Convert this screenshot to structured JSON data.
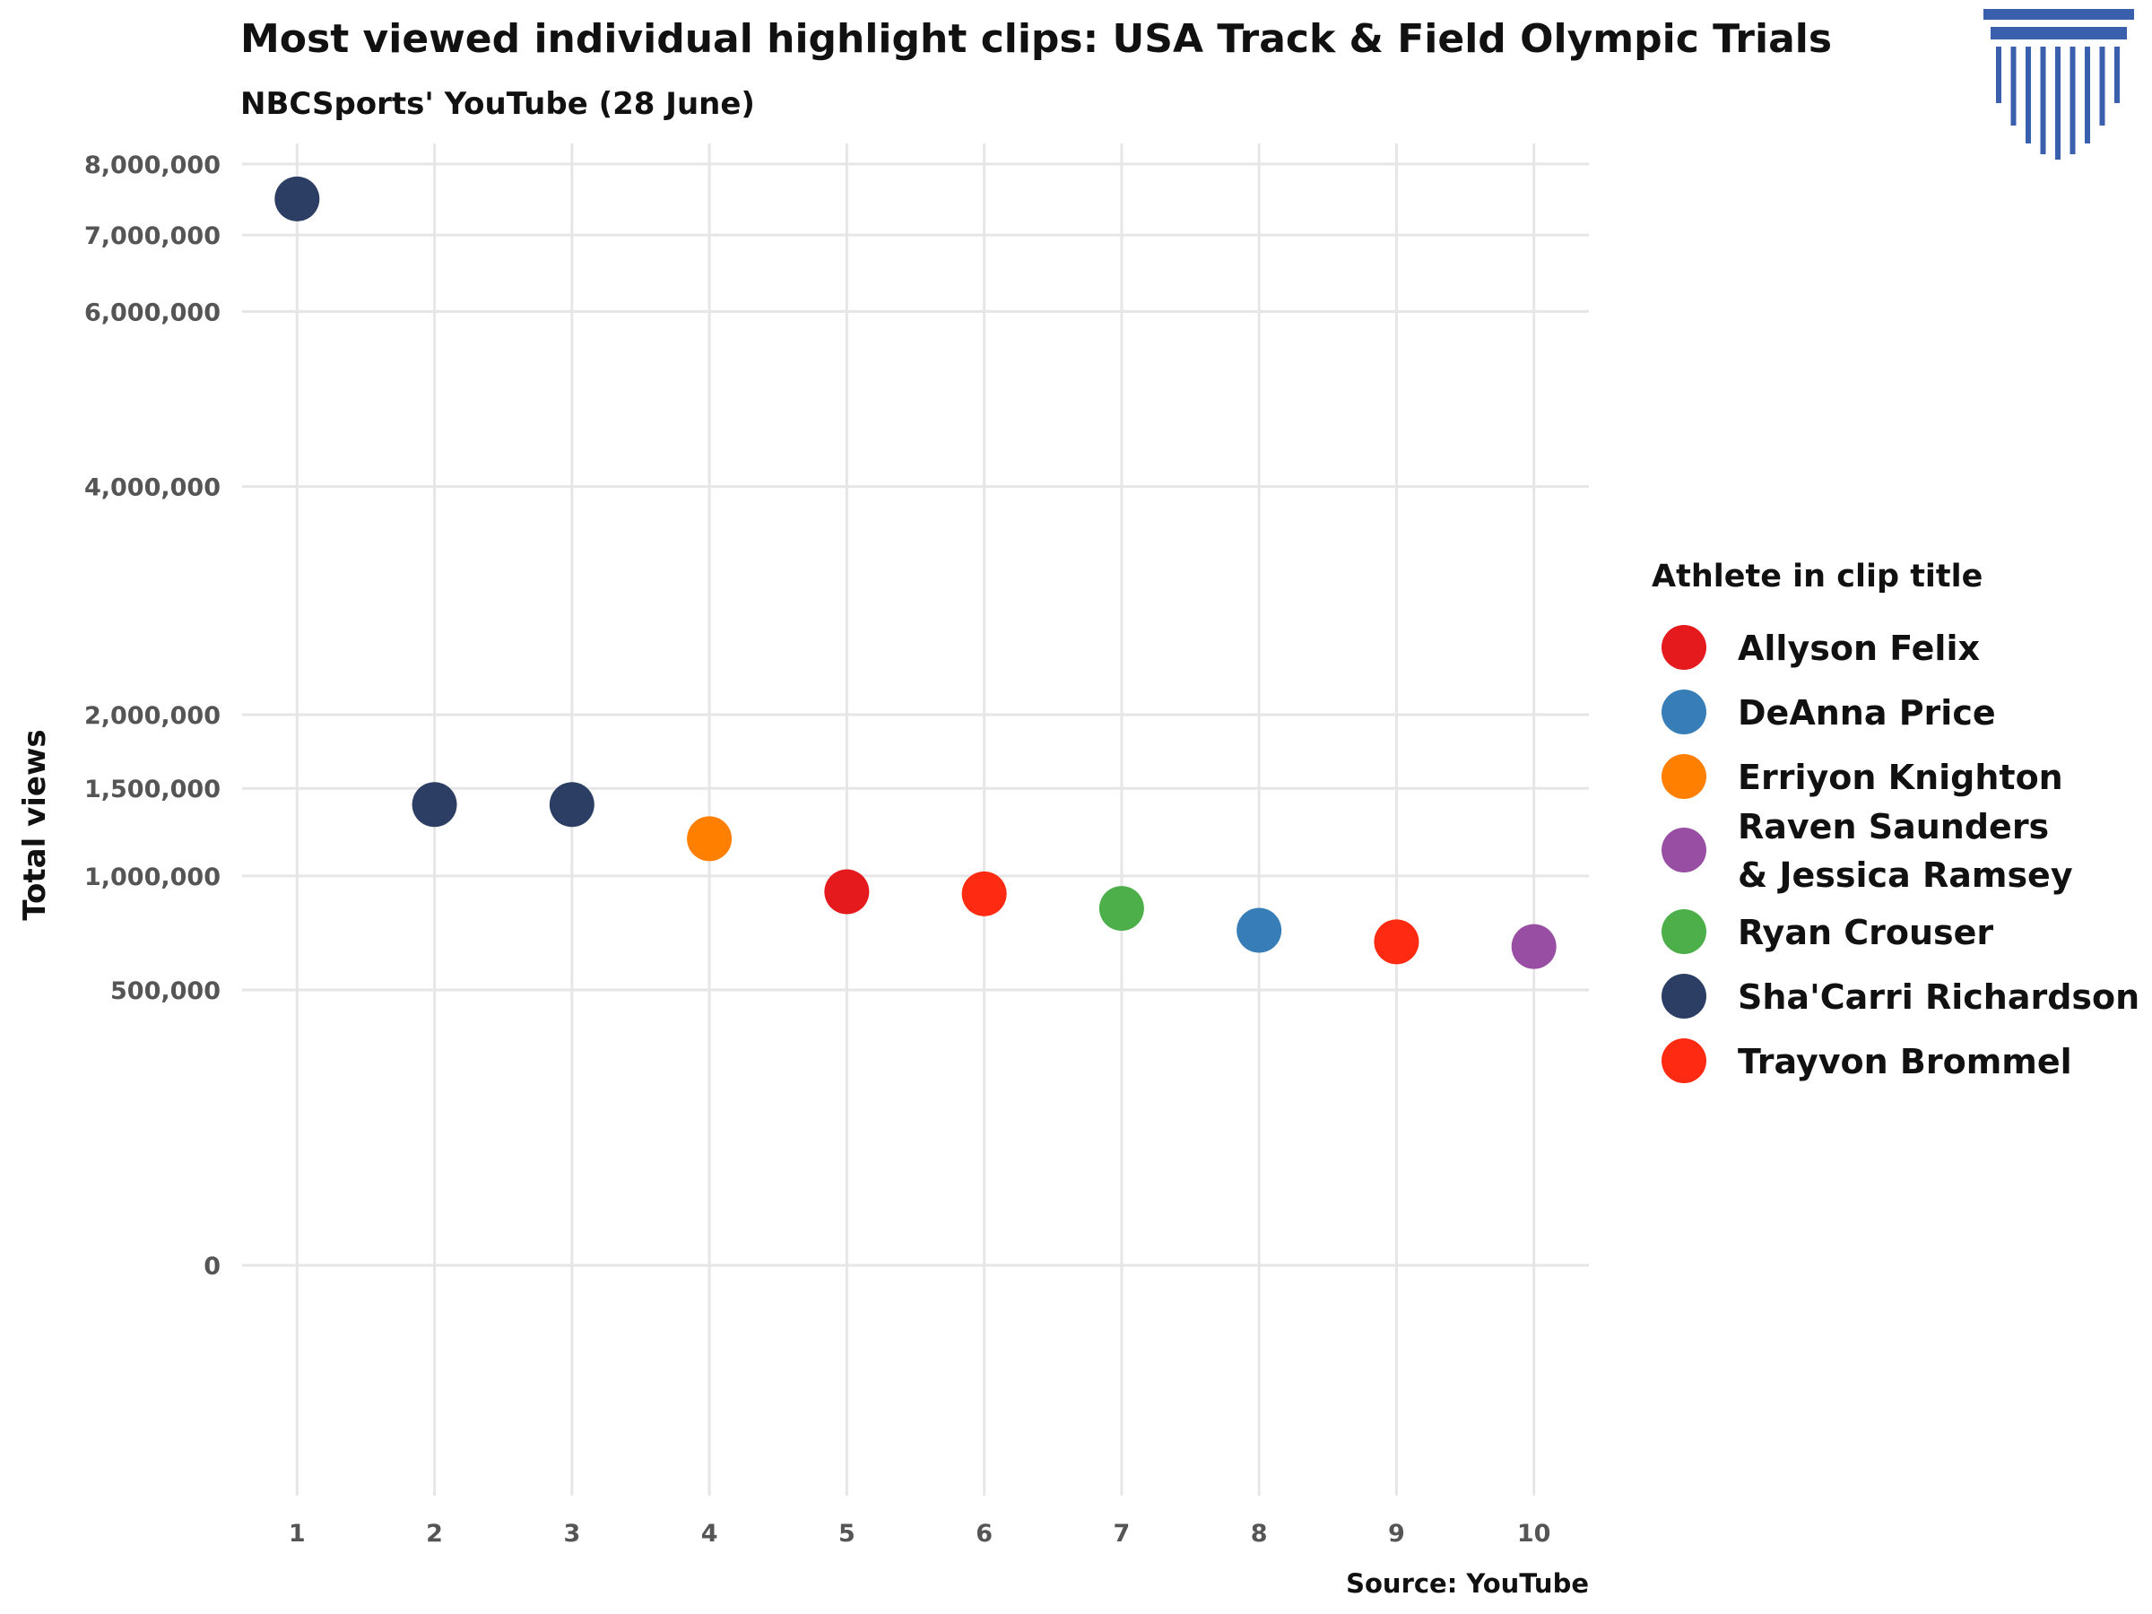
{
  "chart_data": {
    "type": "scatter",
    "title": "Most viewed individual highlight clips: USA Track & Field Olympic Trials",
    "subtitle": "NBCSports' YouTube (28 June)",
    "xlabel": "",
    "ylabel": "Total views",
    "caption": "Source: YouTube",
    "x_ticks": [
      "1",
      "2",
      "3",
      "4",
      "5",
      "6",
      "7",
      "8",
      "9",
      "10"
    ],
    "y_ticks": [
      {
        "value": 0,
        "label": "0"
      },
      {
        "value": 500000,
        "label": "500,000"
      },
      {
        "value": 1000000,
        "label": "1,000,000"
      },
      {
        "value": 1500000,
        "label": "1,500,000"
      },
      {
        "value": 2000000,
        "label": "2,000,000"
      },
      {
        "value": 4000000,
        "label": "4,000,000"
      },
      {
        "value": 6000000,
        "label": "6,000,000"
      },
      {
        "value": 7000000,
        "label": "7,000,000"
      },
      {
        "value": 8000000,
        "label": "8,000,000"
      }
    ],
    "xlim": [
      0.6,
      10.4
    ],
    "ylim": [
      -350000,
      8300000
    ],
    "grid": true,
    "legend_position": "right",
    "legend_title": "Athlete in clip title",
    "legend": [
      {
        "name": "Allyson Felix",
        "lines": [
          "Allyson Felix"
        ],
        "color": "#e41a1c"
      },
      {
        "name": "DeAnna Price",
        "lines": [
          "DeAnna Price"
        ],
        "color": "#377eb8"
      },
      {
        "name": "Erriyon Knighton",
        "lines": [
          "Erriyon Knighton"
        ],
        "color": "#ff7f00"
      },
      {
        "name": "Raven Saunders & Jessica Ramsey",
        "lines": [
          "Raven Saunders",
          " & Jessica Ramsey"
        ],
        "color": "#984ea3"
      },
      {
        "name": "Ryan Crouser",
        "lines": [
          "Ryan Crouser"
        ],
        "color": "#4daf4a"
      },
      {
        "name": "Sha'Carri Richardson",
        "lines": [
          "Sha'Carri Richardson"
        ],
        "color": "#2c3e63"
      },
      {
        "name": "Trayvon Brommel",
        "lines": [
          "Trayvon Brommel"
        ],
        "color": "#ff2a12"
      }
    ],
    "points": [
      {
        "x": 1,
        "y": 7500000,
        "athlete": "Sha'Carri Richardson"
      },
      {
        "x": 2,
        "y": 1400000,
        "athlete": "Sha'Carri Richardson"
      },
      {
        "x": 3,
        "y": 1400000,
        "athlete": "Sha'Carri Richardson"
      },
      {
        "x": 4,
        "y": 1200000,
        "athlete": "Erriyon Knighton"
      },
      {
        "x": 5,
        "y": 920000,
        "athlete": "Allyson Felix"
      },
      {
        "x": 6,
        "y": 910000,
        "athlete": "Trayvon Brommel"
      },
      {
        "x": 7,
        "y": 840000,
        "athlete": "Ryan Crouser"
      },
      {
        "x": 8,
        "y": 740000,
        "athlete": "DeAnna Price"
      },
      {
        "x": 9,
        "y": 690000,
        "athlete": "Trayvon Brommel"
      },
      {
        "x": 10,
        "y": 670000,
        "athlete": "Raven Saunders & Jessica Ramsey"
      }
    ]
  },
  "logo": {
    "name": "column-logo-icon",
    "color": "#3a5fad"
  }
}
